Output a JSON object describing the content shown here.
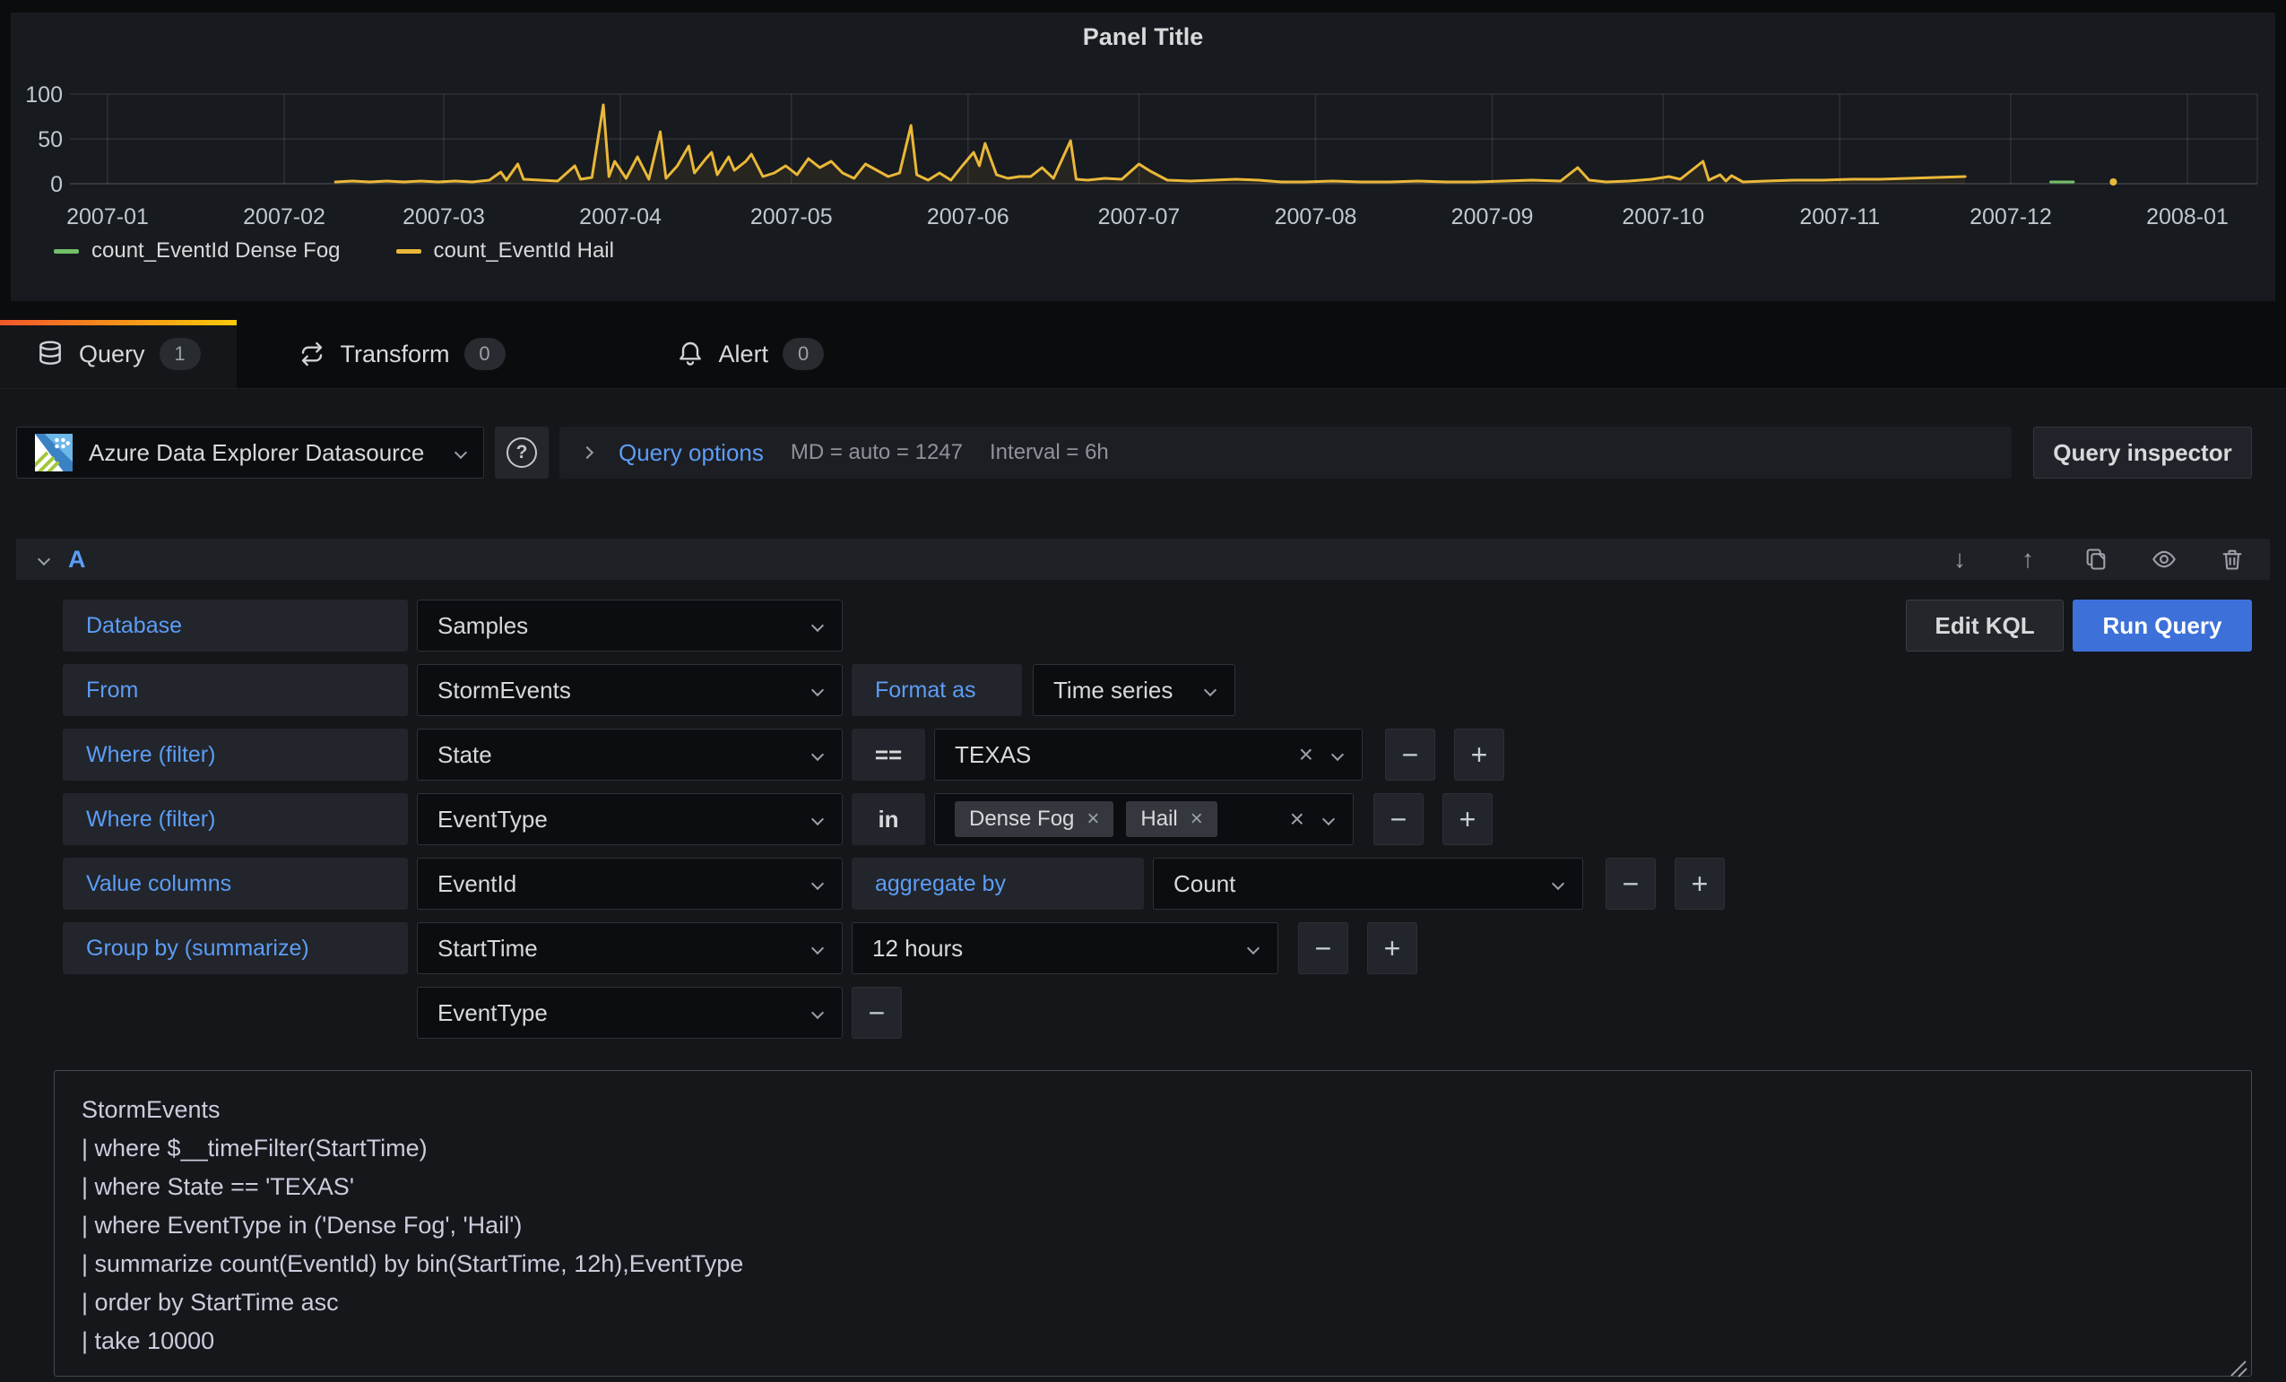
{
  "panel": {
    "title": "Panel Title"
  },
  "chart_data": {
    "type": "line",
    "title": "Panel Title",
    "x_ticks": [
      "2007-01",
      "2007-02",
      "2007-03",
      "2007-04",
      "2007-05",
      "2007-06",
      "2007-07",
      "2007-08",
      "2007-09",
      "2007-10",
      "2007-11",
      "2007-12",
      "2008-01"
    ],
    "y_ticks": [
      0,
      50,
      100
    ],
    "ylim": [
      0,
      100
    ],
    "grid": true,
    "legend_position": "bottom",
    "series": [
      {
        "name": "count_EventId Dense Fog",
        "color": "#73bf69",
        "points": [
          [
            "2007-12-08",
            2
          ],
          [
            "2007-12-10",
            2
          ],
          [
            "2007-12-12",
            2
          ],
          [
            "2007-12-19",
            2
          ]
        ]
      },
      {
        "name": "count_EventId Hail",
        "color": "#eab839",
        "points": [
          [
            "2007-02-10",
            2
          ],
          [
            "2007-02-13",
            3
          ],
          [
            "2007-02-16",
            2
          ],
          [
            "2007-02-19",
            3
          ],
          [
            "2007-02-22",
            2
          ],
          [
            "2007-02-25",
            3
          ],
          [
            "2007-02-28",
            2
          ],
          [
            "2007-03-03",
            3
          ],
          [
            "2007-03-06",
            2
          ],
          [
            "2007-03-09",
            4
          ],
          [
            "2007-03-11",
            13
          ],
          [
            "2007-03-12",
            4
          ],
          [
            "2007-03-14",
            22
          ],
          [
            "2007-03-15",
            5
          ],
          [
            "2007-03-18",
            4
          ],
          [
            "2007-03-21",
            3
          ],
          [
            "2007-03-24",
            20
          ],
          [
            "2007-03-25",
            5
          ],
          [
            "2007-03-27",
            7
          ],
          [
            "2007-03-29",
            88
          ],
          [
            "2007-03-30",
            8
          ],
          [
            "2007-03-31",
            25
          ],
          [
            "2007-04-02",
            6
          ],
          [
            "2007-04-04",
            30
          ],
          [
            "2007-04-06",
            5
          ],
          [
            "2007-04-08",
            58
          ],
          [
            "2007-04-09",
            6
          ],
          [
            "2007-04-11",
            20
          ],
          [
            "2007-04-13",
            42
          ],
          [
            "2007-04-14",
            12
          ],
          [
            "2007-04-16",
            28
          ],
          [
            "2007-04-17",
            35
          ],
          [
            "2007-04-18",
            10
          ],
          [
            "2007-04-20",
            30
          ],
          [
            "2007-04-21",
            15
          ],
          [
            "2007-04-23",
            25
          ],
          [
            "2007-04-24",
            33
          ],
          [
            "2007-04-26",
            8
          ],
          [
            "2007-04-28",
            12
          ],
          [
            "2007-04-30",
            20
          ],
          [
            "2007-05-02",
            10
          ],
          [
            "2007-05-04",
            28
          ],
          [
            "2007-05-06",
            18
          ],
          [
            "2007-05-08",
            25
          ],
          [
            "2007-05-10",
            12
          ],
          [
            "2007-05-12",
            6
          ],
          [
            "2007-05-14",
            22
          ],
          [
            "2007-05-16",
            15
          ],
          [
            "2007-05-18",
            8
          ],
          [
            "2007-05-20",
            12
          ],
          [
            "2007-05-22",
            65
          ],
          [
            "2007-05-23",
            10
          ],
          [
            "2007-05-25",
            4
          ],
          [
            "2007-05-27",
            12
          ],
          [
            "2007-05-29",
            4
          ],
          [
            "2007-05-31",
            20
          ],
          [
            "2007-06-02",
            35
          ],
          [
            "2007-06-03",
            20
          ],
          [
            "2007-06-04",
            45
          ],
          [
            "2007-06-06",
            10
          ],
          [
            "2007-06-08",
            6
          ],
          [
            "2007-06-10",
            8
          ],
          [
            "2007-06-12",
            8
          ],
          [
            "2007-06-14",
            18
          ],
          [
            "2007-06-16",
            6
          ],
          [
            "2007-06-19",
            48
          ],
          [
            "2007-06-20",
            5
          ],
          [
            "2007-06-22",
            4
          ],
          [
            "2007-06-25",
            6
          ],
          [
            "2007-06-28",
            5
          ],
          [
            "2007-07-01",
            22
          ],
          [
            "2007-07-03",
            14
          ],
          [
            "2007-07-06",
            4
          ],
          [
            "2007-07-10",
            3
          ],
          [
            "2007-07-14",
            4
          ],
          [
            "2007-07-18",
            5
          ],
          [
            "2007-07-22",
            4
          ],
          [
            "2007-07-26",
            2
          ],
          [
            "2007-07-30",
            2
          ],
          [
            "2007-08-04",
            3
          ],
          [
            "2007-08-09",
            2
          ],
          [
            "2007-08-14",
            2
          ],
          [
            "2007-08-19",
            3
          ],
          [
            "2007-08-24",
            2
          ],
          [
            "2007-08-29",
            2
          ],
          [
            "2007-09-03",
            3
          ],
          [
            "2007-09-08",
            4
          ],
          [
            "2007-09-13",
            3
          ],
          [
            "2007-09-16",
            18
          ],
          [
            "2007-09-18",
            4
          ],
          [
            "2007-09-21",
            2
          ],
          [
            "2007-09-25",
            3
          ],
          [
            "2007-09-29",
            5
          ],
          [
            "2007-10-02",
            8
          ],
          [
            "2007-10-04",
            5
          ],
          [
            "2007-10-08",
            25
          ],
          [
            "2007-10-09",
            4
          ],
          [
            "2007-10-11",
            10
          ],
          [
            "2007-10-12",
            3
          ],
          [
            "2007-10-13",
            9
          ],
          [
            "2007-10-15",
            2
          ],
          [
            "2007-10-19",
            3
          ],
          [
            "2007-10-24",
            4
          ],
          [
            "2007-10-29",
            4
          ],
          [
            "2007-11-03",
            5
          ],
          [
            "2007-11-08",
            5
          ],
          [
            "2007-11-13",
            6
          ],
          [
            "2007-11-18",
            7
          ],
          [
            "2007-11-23",
            8
          ],
          [
            "2007-12-19",
            2
          ]
        ]
      }
    ]
  },
  "tabs": [
    {
      "label": "Query",
      "badge": "1"
    },
    {
      "label": "Transform",
      "badge": "0"
    },
    {
      "label": "Alert",
      "badge": "0"
    }
  ],
  "toolbar": {
    "datasource": "Azure Data Explorer Datasource",
    "query_options": "Query options",
    "md_summary": "MD = auto = 1247",
    "interval_summary": "Interval = 6h",
    "query_inspector": "Query inspector"
  },
  "query": {
    "name": "A",
    "edit_kql": "Edit KQL",
    "run_query": "Run Query",
    "database": {
      "label": "Database",
      "value": "Samples"
    },
    "from": {
      "label": "From",
      "value": "StormEvents"
    },
    "format_as": {
      "label": "Format as",
      "value": "Time series"
    },
    "where_state": {
      "label": "Where (filter)",
      "column": "State",
      "op": "==",
      "value": "TEXAS"
    },
    "where_event": {
      "label": "Where (filter)",
      "column": "EventType",
      "op": "in",
      "values": [
        "Dense Fog",
        "Hail"
      ]
    },
    "value_columns": {
      "label": "Value columns",
      "column": "EventId",
      "agg_label": "aggregate by",
      "agg": "Count"
    },
    "group_by": {
      "label": "Group by (summarize)",
      "column": "StartTime",
      "interval": "12 hours",
      "column2": "EventType"
    },
    "kql_lines": [
      "StormEvents",
      "| where $__timeFilter(StartTime)",
      "| where State == 'TEXAS'",
      "| where EventType in ('Dense Fog', 'Hail')",
      "| summarize count(EventId) by bin(StartTime, 12h),EventType",
      "| order by StartTime asc",
      "| take 10000"
    ]
  },
  "icons": {
    "arrow_down": "↓",
    "arrow_up": "↑",
    "minus": "−",
    "plus": "+",
    "close": "×",
    "help": "?"
  },
  "colors": {
    "accent_blue": "#5c9df6",
    "run_button": "#3d71d9",
    "tab_gradient_start": "#f2572b",
    "tab_gradient_end": "#fbca0a",
    "series_green": "#73bf69",
    "series_yellow": "#eab839"
  }
}
